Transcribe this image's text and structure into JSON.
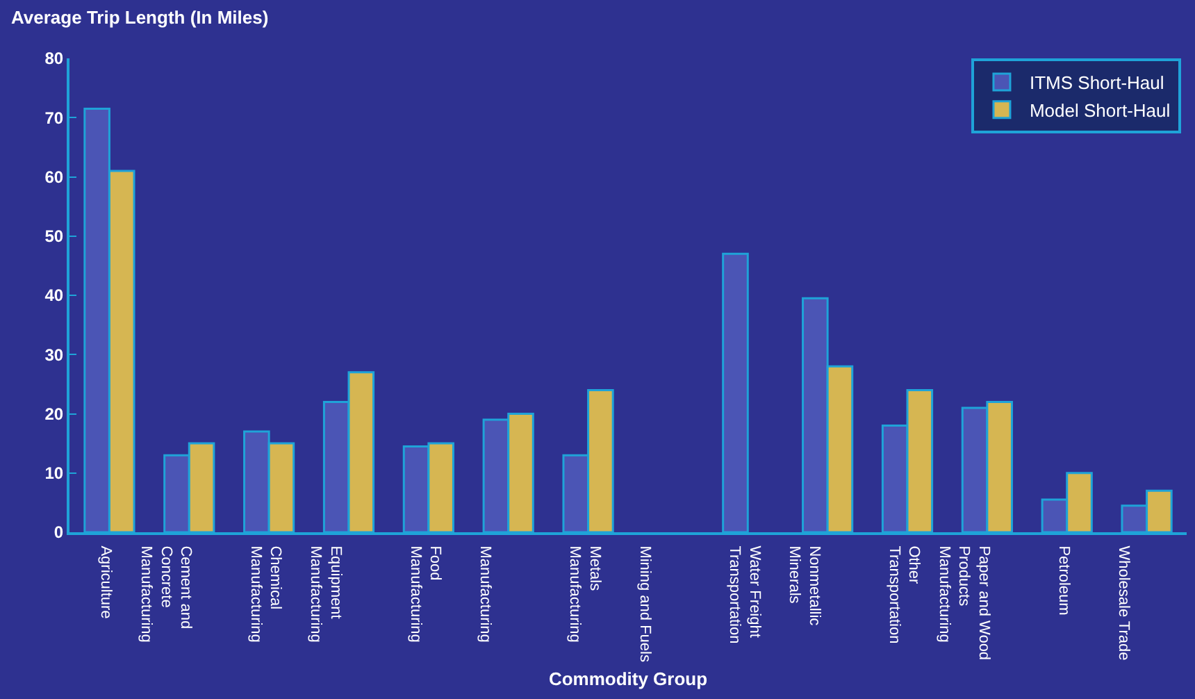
{
  "chart_data": {
    "type": "bar",
    "ylabel": "Average Trip Length (In Miles)",
    "xlabel": "Commodity Group",
    "categories": [
      "Agriculture",
      "Cement and Concrete Manufacturing",
      "Chemical Manufacturing",
      "Equipment Manufacturing",
      "Food Manufacturing",
      "Manufacturing",
      "Metals Manufacturing",
      "Mining and Fuels",
      "Water Freight Transportation",
      "Nonmetallic Minerals",
      "Other Transportation",
      "Paper and Wood Products Manufacturing",
      "Petroleum",
      "Wholesale Trade"
    ],
    "series": [
      {
        "name": "ITMS Short-Haul",
        "color": "#4b55b5",
        "values": [
          71.5,
          13,
          17,
          22,
          14.5,
          19,
          13,
          null,
          47,
          39.5,
          18,
          21,
          5.5,
          4.5
        ]
      },
      {
        "name": "Model Short-Haul",
        "color": "#d6b652",
        "values": [
          61,
          15,
          15,
          27,
          15,
          20,
          24,
          null,
          null,
          28,
          24,
          22,
          10,
          7
        ]
      }
    ],
    "ylim": [
      0,
      80
    ],
    "yticks": [
      0,
      10,
      20,
      30,
      40,
      50,
      60,
      70,
      80
    ],
    "grid": false,
    "legend": "top right"
  }
}
